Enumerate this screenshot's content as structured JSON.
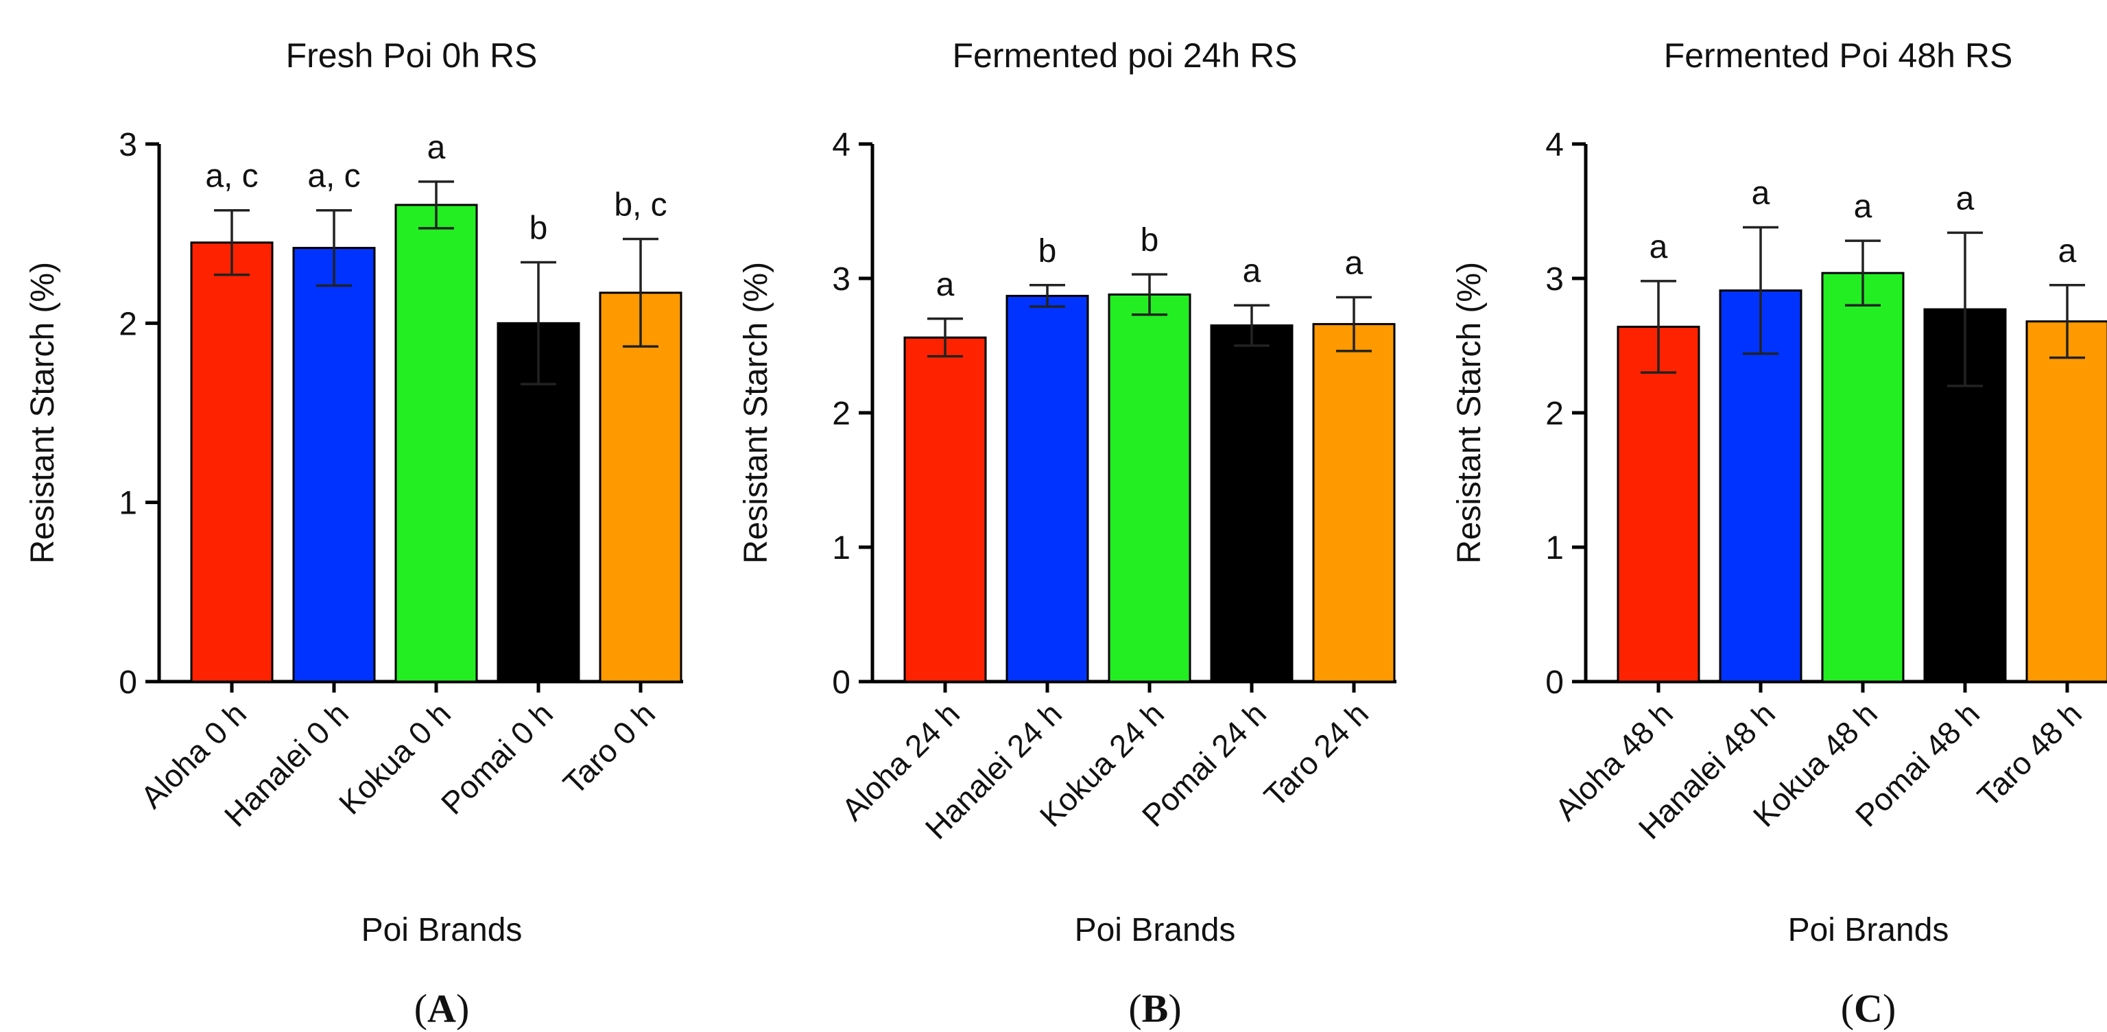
{
  "chart_data": [
    {
      "type": "bar",
      "panel": "(A)",
      "panel_letter": "A",
      "title": "Fresh Poi 0h RS",
      "xlabel": "Poi Brands",
      "ylabel": "Resistant Starch (%)",
      "ylim": [
        0,
        3
      ],
      "yticks": [
        0,
        1,
        2,
        3
      ],
      "categories": [
        "Aloha 0 h",
        "Hanalei 0 h",
        "Kokua 0 h",
        "Pomai 0 h",
        "Taro 0 h"
      ],
      "values": [
        2.45,
        2.42,
        2.66,
        2.0,
        2.17
      ],
      "errors": [
        0.18,
        0.21,
        0.13,
        0.34,
        0.3
      ],
      "significance": [
        "a, c",
        "a, c",
        "a",
        "b",
        "b, c"
      ],
      "colors": [
        "#ff2200",
        "#0033ff",
        "#22ee22",
        "#000000",
        "#ff9900"
      ]
    },
    {
      "type": "bar",
      "panel": "(B)",
      "panel_letter": "B",
      "title": "Fermented poi 24h RS",
      "xlabel": "Poi Brands",
      "ylabel": "Resistant Starch (%)",
      "ylim": [
        0,
        4
      ],
      "yticks": [
        0,
        1,
        2,
        3,
        4
      ],
      "categories": [
        "Aloha 24 h",
        "Hanalei 24 h",
        "Kokua 24 h",
        "Pomai 24 h",
        "Taro 24 h"
      ],
      "values": [
        2.56,
        2.87,
        2.88,
        2.65,
        2.66
      ],
      "errors": [
        0.14,
        0.08,
        0.15,
        0.15,
        0.2
      ],
      "significance": [
        "a",
        "b",
        "b",
        "a",
        "a"
      ],
      "colors": [
        "#ff2200",
        "#0033ff",
        "#22ee22",
        "#000000",
        "#ff9900"
      ]
    },
    {
      "type": "bar",
      "panel": "(C)",
      "panel_letter": "C",
      "title": "Fermented Poi 48h RS",
      "xlabel": "Poi Brands",
      "ylabel": "Resistant Starch (%)",
      "ylim": [
        0,
        4
      ],
      "yticks": [
        0,
        1,
        2,
        3,
        4
      ],
      "categories": [
        "Aloha 48 h",
        "Hanalei 48 h",
        "Kokua 48 h",
        "Pomai 48 h",
        "Taro 48 h"
      ],
      "values": [
        2.64,
        2.91,
        3.04,
        2.77,
        2.68
      ],
      "errors": [
        0.34,
        0.47,
        0.24,
        0.57,
        0.27
      ],
      "significance": [
        "a",
        "a",
        "a",
        "a",
        "a"
      ],
      "colors": [
        "#ff2200",
        "#0033ff",
        "#22ee22",
        "#000000",
        "#ff9900"
      ]
    }
  ]
}
